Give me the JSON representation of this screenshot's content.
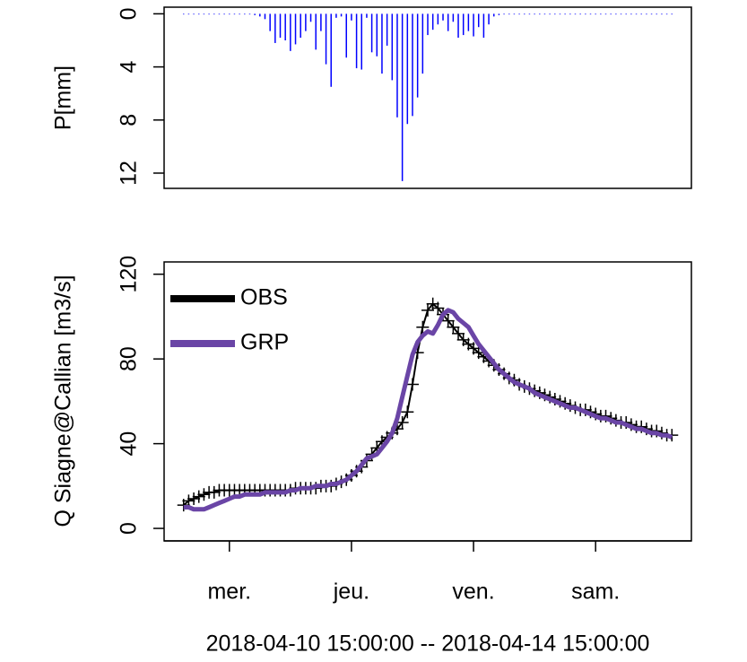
{
  "chart_data": [
    {
      "type": "bar",
      "ylabel": "P[mm]",
      "color": "#0000ff",
      "y_inverted": true,
      "x": [
        "2018-04-10 15:00",
        "2018-04-10 16:00",
        "2018-04-10 17:00",
        "2018-04-10 18:00",
        "2018-04-10 19:00",
        "2018-04-10 20:00",
        "2018-04-10 21:00",
        "2018-04-10 22:00",
        "2018-04-10 23:00",
        "2018-04-11 00:00",
        "2018-04-11 01:00",
        "2018-04-11 02:00",
        "2018-04-11 03:00",
        "2018-04-11 04:00",
        "2018-04-11 05:00",
        "2018-04-11 06:00",
        "2018-04-11 07:00",
        "2018-04-11 08:00",
        "2018-04-11 09:00",
        "2018-04-11 10:00",
        "2018-04-11 11:00",
        "2018-04-11 12:00",
        "2018-04-11 13:00",
        "2018-04-11 14:00",
        "2018-04-11 15:00",
        "2018-04-11 16:00",
        "2018-04-11 17:00",
        "2018-04-11 18:00",
        "2018-04-11 19:00",
        "2018-04-11 20:00",
        "2018-04-11 21:00",
        "2018-04-11 22:00",
        "2018-04-11 23:00",
        "2018-04-12 00:00",
        "2018-04-12 01:00",
        "2018-04-12 02:00",
        "2018-04-12 03:00",
        "2018-04-12 04:00",
        "2018-04-12 05:00",
        "2018-04-12 06:00",
        "2018-04-12 07:00",
        "2018-04-12 08:00",
        "2018-04-12 09:00",
        "2018-04-12 10:00",
        "2018-04-12 11:00",
        "2018-04-12 12:00",
        "2018-04-12 13:00",
        "2018-04-12 14:00",
        "2018-04-12 15:00",
        "2018-04-12 16:00",
        "2018-04-12 17:00",
        "2018-04-12 18:00",
        "2018-04-12 19:00",
        "2018-04-12 20:00",
        "2018-04-12 21:00",
        "2018-04-12 22:00",
        "2018-04-12 23:00",
        "2018-04-13 00:00",
        "2018-04-13 01:00",
        "2018-04-13 02:00",
        "2018-04-13 03:00",
        "2018-04-13 04:00",
        "2018-04-13 05:00",
        "2018-04-13 06:00",
        "2018-04-13 07:00",
        "2018-04-13 08:00",
        "2018-04-13 09:00",
        "2018-04-13 10:00",
        "2018-04-13 11:00",
        "2018-04-13 12:00",
        "2018-04-13 13:00",
        "2018-04-13 14:00",
        "2018-04-13 15:00",
        "2018-04-13 16:00",
        "2018-04-13 17:00",
        "2018-04-13 18:00",
        "2018-04-13 19:00",
        "2018-04-13 20:00",
        "2018-04-13 21:00",
        "2018-04-13 22:00",
        "2018-04-13 23:00",
        "2018-04-14 00:00",
        "2018-04-14 01:00",
        "2018-04-14 02:00",
        "2018-04-14 03:00",
        "2018-04-14 04:00",
        "2018-04-14 05:00",
        "2018-04-14 06:00",
        "2018-04-14 07:00",
        "2018-04-14 08:00",
        "2018-04-14 09:00",
        "2018-04-14 10:00",
        "2018-04-14 11:00",
        "2018-04-14 12:00",
        "2018-04-14 13:00",
        "2018-04-14 14:00",
        "2018-04-14 15:00"
      ],
      "values": [
        0.05,
        0.05,
        0.05,
        0.05,
        0.05,
        0.05,
        0.05,
        0.05,
        0.05,
        0.05,
        0.05,
        0.05,
        0.05,
        0.05,
        0.1,
        0.2,
        0.4,
        1.3,
        2.2,
        1.8,
        2.0,
        2.8,
        2.3,
        1.8,
        1.3,
        0.6,
        2.7,
        1.3,
        3.8,
        5.5,
        0.3,
        0.2,
        3.3,
        0.5,
        4.1,
        4.2,
        0.3,
        2.9,
        3.2,
        4.5,
        2.4,
        5.0,
        7.8,
        12.6,
        8.3,
        7.7,
        6.3,
        4.5,
        1.6,
        1.2,
        0.8,
        0.5,
        1.3,
        0.6,
        1.8,
        1.6,
        1.3,
        1.7,
        1.0,
        1.8,
        0.8,
        0.2,
        0.1,
        0.05,
        0.05,
        0.05,
        0.05,
        0.05,
        0.05,
        0.05,
        0.05,
        0.05,
        0.05,
        0.05,
        0.05,
        0.05,
        0.05,
        0.05,
        0.05,
        0.05,
        0.05,
        0.05,
        0.05,
        0.05,
        0.05,
        0.05,
        0.05,
        0.05,
        0.05,
        0.05,
        0.05,
        0.05,
        0.05,
        0.05,
        0.05,
        0.05,
        0.05
      ],
      "xlim": [
        "2018-04-10 11:10",
        "2018-04-14 18:50"
      ],
      "ylim": [
        -0.5,
        13.15
      ],
      "yticks": [
        0,
        4,
        8,
        12
      ]
    },
    {
      "type": "line",
      "ylabel": "Q Siagne@Callian [m3/s]",
      "xlabel": "2018-04-10 15:00:00 -- 2018-04-14 15:00:00",
      "legend": "top-left",
      "x": [
        "2018-04-10 15:00",
        "2018-04-10 16:00",
        "2018-04-10 17:00",
        "2018-04-10 18:00",
        "2018-04-10 19:00",
        "2018-04-10 20:00",
        "2018-04-10 21:00",
        "2018-04-10 22:00",
        "2018-04-10 23:00",
        "2018-04-11 00:00",
        "2018-04-11 01:00",
        "2018-04-11 02:00",
        "2018-04-11 03:00",
        "2018-04-11 04:00",
        "2018-04-11 05:00",
        "2018-04-11 06:00",
        "2018-04-11 07:00",
        "2018-04-11 08:00",
        "2018-04-11 09:00",
        "2018-04-11 10:00",
        "2018-04-11 11:00",
        "2018-04-11 12:00",
        "2018-04-11 13:00",
        "2018-04-11 14:00",
        "2018-04-11 15:00",
        "2018-04-11 16:00",
        "2018-04-11 17:00",
        "2018-04-11 18:00",
        "2018-04-11 19:00",
        "2018-04-11 20:00",
        "2018-04-11 21:00",
        "2018-04-11 22:00",
        "2018-04-11 23:00",
        "2018-04-12 00:00",
        "2018-04-12 01:00",
        "2018-04-12 02:00",
        "2018-04-12 03:00",
        "2018-04-12 04:00",
        "2018-04-12 05:00",
        "2018-04-12 06:00",
        "2018-04-12 07:00",
        "2018-04-12 08:00",
        "2018-04-12 09:00",
        "2018-04-12 10:00",
        "2018-04-12 11:00",
        "2018-04-12 12:00",
        "2018-04-12 13:00",
        "2018-04-12 14:00",
        "2018-04-12 15:00",
        "2018-04-12 16:00",
        "2018-04-12 17:00",
        "2018-04-12 18:00",
        "2018-04-12 19:00",
        "2018-04-12 20:00",
        "2018-04-12 21:00",
        "2018-04-12 22:00",
        "2018-04-12 23:00",
        "2018-04-13 00:00",
        "2018-04-13 01:00",
        "2018-04-13 02:00",
        "2018-04-13 03:00",
        "2018-04-13 04:00",
        "2018-04-13 05:00",
        "2018-04-13 06:00",
        "2018-04-13 07:00",
        "2018-04-13 08:00",
        "2018-04-13 09:00",
        "2018-04-13 10:00",
        "2018-04-13 11:00",
        "2018-04-13 12:00",
        "2018-04-13 13:00",
        "2018-04-13 14:00",
        "2018-04-13 15:00",
        "2018-04-13 16:00",
        "2018-04-13 17:00",
        "2018-04-13 18:00",
        "2018-04-13 19:00",
        "2018-04-13 20:00",
        "2018-04-13 21:00",
        "2018-04-13 22:00",
        "2018-04-13 23:00",
        "2018-04-14 00:00",
        "2018-04-14 01:00",
        "2018-04-14 02:00",
        "2018-04-14 03:00",
        "2018-04-14 04:00",
        "2018-04-14 05:00",
        "2018-04-14 06:00",
        "2018-04-14 07:00",
        "2018-04-14 08:00",
        "2018-04-14 09:00",
        "2018-04-14 10:00",
        "2018-04-14 11:00",
        "2018-04-14 12:00",
        "2018-04-14 13:00",
        "2018-04-14 14:00",
        "2018-04-14 15:00"
      ],
      "series": [
        {
          "name": "OBS",
          "color": "#000000",
          "values": [
            11,
            13,
            14,
            15,
            16,
            17,
            17,
            18,
            18,
            18,
            18,
            18,
            18,
            18,
            18,
            18,
            18,
            18,
            18,
            18,
            18,
            18,
            19,
            19,
            19,
            19,
            19,
            20,
            20,
            20,
            21,
            22,
            23,
            25,
            27,
            29,
            32,
            35,
            38,
            41,
            43,
            45,
            47,
            50,
            55,
            68,
            83,
            95,
            103,
            106,
            104,
            101,
            98,
            95,
            92,
            89,
            87,
            85,
            83,
            81,
            79,
            77,
            75,
            73,
            71,
            70,
            68,
            67,
            66,
            65,
            64,
            63,
            62,
            61,
            60,
            59,
            58,
            57,
            56,
            56,
            55,
            54,
            53,
            53,
            52,
            51,
            50,
            50,
            49,
            48,
            48,
            47,
            46,
            46,
            45,
            44,
            44
          ]
        },
        {
          "name": "GRP",
          "color": "#6a45a6",
          "values": [
            10,
            10,
            9,
            9,
            9,
            10,
            11,
            12,
            13,
            14,
            15,
            15,
            16,
            16,
            16,
            16,
            17,
            17,
            17,
            17,
            17,
            18,
            18,
            19,
            19,
            19,
            20,
            20,
            20,
            21,
            21,
            22,
            23,
            25,
            27,
            30,
            33,
            34,
            35,
            38,
            41,
            45,
            52,
            62,
            72,
            82,
            88,
            91,
            93,
            92,
            96,
            101,
            103,
            102,
            99,
            97,
            95,
            91,
            87,
            84,
            81,
            78,
            75,
            73,
            71,
            69,
            68,
            67,
            66,
            64,
            63,
            62,
            61,
            60,
            59,
            58,
            57,
            57,
            56,
            55,
            54,
            53,
            52,
            52,
            51,
            50,
            50,
            49,
            48,
            47,
            47,
            46,
            45,
            45,
            44,
            44,
            43
          ]
        }
      ],
      "xlim": [
        "2018-04-10 11:10",
        "2018-04-14 18:50"
      ],
      "xticks": [
        {
          "value": "2018-04-11 00:00",
          "label": "mer."
        },
        {
          "value": "2018-04-12 00:00",
          "label": "jeu."
        },
        {
          "value": "2018-04-13 00:00",
          "label": "ven."
        },
        {
          "value": "2018-04-14 00:00",
          "label": "sam."
        }
      ],
      "ylim": [
        -5.9,
        125.8
      ],
      "yticks": [
        0,
        40,
        80,
        120
      ]
    }
  ]
}
